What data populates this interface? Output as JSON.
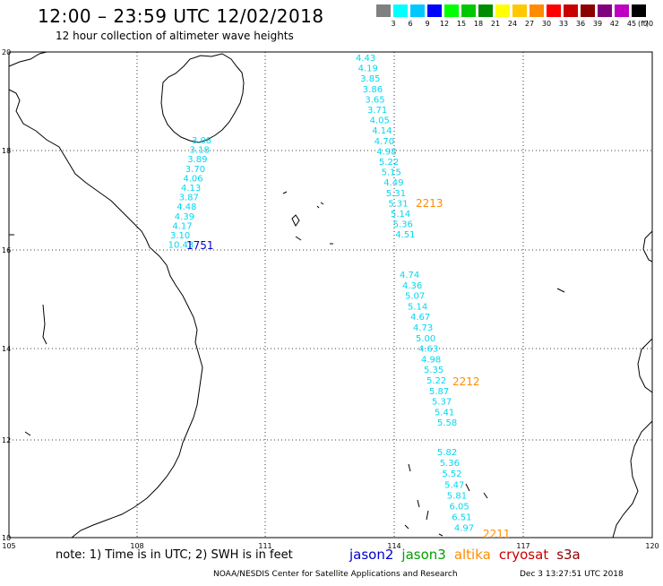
{
  "header": {
    "title": "12:00 – 23:59 UTC 12/02/2018",
    "subtitle": "12 hour collection of altimeter wave heights"
  },
  "colorbar": {
    "colors": [
      "#808080",
      "#00ffff",
      "#00c8ff",
      "#0000ff",
      "#00ff00",
      "#00c800",
      "#008c00",
      "#ffff00",
      "#ffc800",
      "#ff8c00",
      "#ff0000",
      "#c80000",
      "#8c0000",
      "#800080",
      "#c000c0",
      "#000000"
    ],
    "labels": [
      "3",
      "6",
      "9",
      "12",
      "15",
      "18",
      "21",
      "24",
      "27",
      "30",
      "33",
      "36",
      "39",
      "42",
      "45",
      "70"
    ],
    "unit": "(ft)"
  },
  "axes": {
    "x_ticks": [
      "105",
      "108",
      "111",
      "114",
      "117",
      "120"
    ],
    "y_ticks": [
      "20",
      "18",
      "16",
      "14",
      "12",
      "10"
    ]
  },
  "passes": [
    {
      "label": "1751",
      "color": "#0000cc",
      "values": [
        "3.08",
        "3.18",
        "3.89",
        "3.70",
        "4.06",
        "4.13",
        "3.87",
        "4.48",
        "4.39",
        "4.17",
        "3.10",
        "10.43"
      ]
    },
    {
      "label": "2213",
      "color": "#ff8c00",
      "values": [
        "4.43",
        "4.19",
        "3.85",
        "3.86",
        "3.65",
        "3.71",
        "4.05",
        "4.14",
        "4.70",
        "4.98",
        "5.22",
        "5.15",
        "4.49",
        "5.31",
        "5.31",
        "5.14",
        "5.36",
        "4.51"
      ]
    },
    {
      "label": "2212",
      "color": "#ff8c00",
      "values": [
        "4.74",
        "4.36",
        "5.07",
        "5.14",
        "4.67",
        "4.73",
        "5.00",
        "4.63",
        "4.98",
        "5.35",
        "5.22",
        "5.87",
        "5.37",
        "5.41",
        "5.58"
      ]
    },
    {
      "label": "2211",
      "color": "#ff8c00",
      "values": [
        "5.82",
        "5.36",
        "5.52",
        "5.47",
        "5.81",
        "6.05",
        "6.51",
        "4.97"
      ]
    }
  ],
  "footer": {
    "note": "note:  1) Time is in UTC;  2) SWH is in feet",
    "satellites": [
      {
        "name": "jason2",
        "color": "#0000cc"
      },
      {
        "name": "jason3",
        "color": "#00a000"
      },
      {
        "name": "altika",
        "color": "#ff8c00"
      },
      {
        "name": "cryosat",
        "color": "#cc0000"
      },
      {
        "name": "s3a",
        "color": "#8b0000"
      }
    ],
    "credit": "NOAA/NESDIS Center for Satellite Applications and Research",
    "timestamp": "Dec  3 13:27:51 UTC 2018"
  }
}
